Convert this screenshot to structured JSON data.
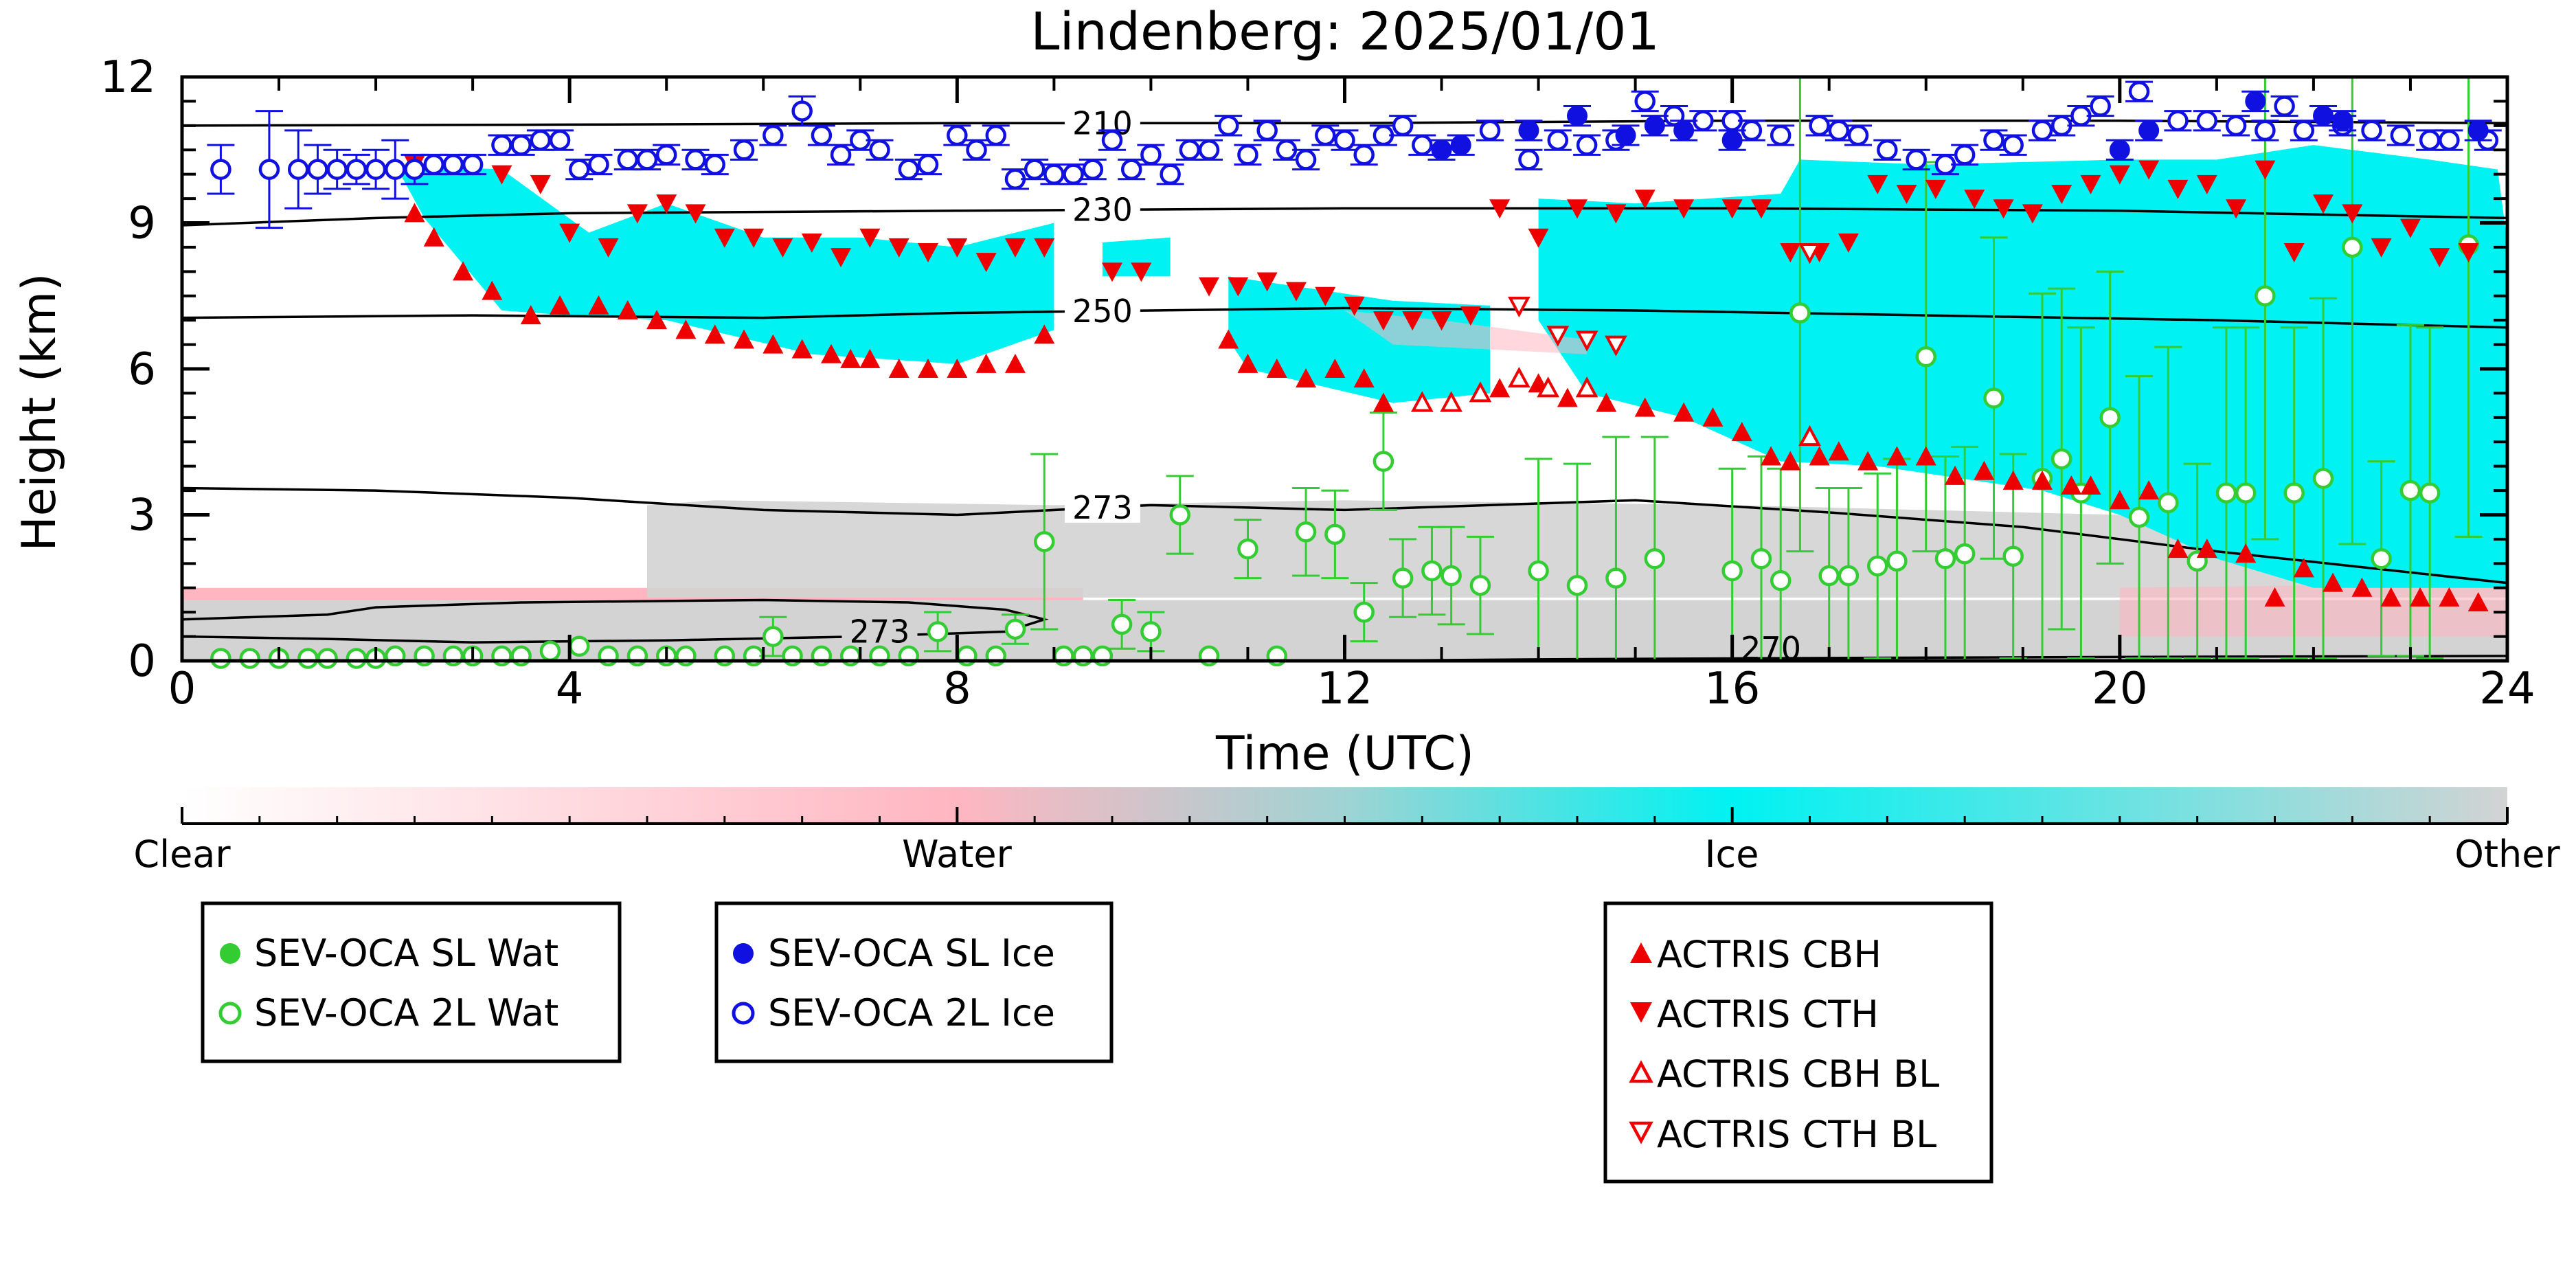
{
  "chart_data": {
    "type": "scatter",
    "title": "Lindenberg: 2025/01/01",
    "xlabel": "Time (UTC)",
    "ylabel": "Height (km)",
    "xlim": [
      0,
      24
    ],
    "ylim": [
      0,
      12
    ],
    "x_ticks": [
      0,
      4,
      8,
      12,
      16,
      20,
      24
    ],
    "y_ticks": [
      0,
      3,
      6,
      9,
      12
    ],
    "grid": false,
    "colors": {
      "clear": "#ffffff",
      "water": "#ffb6c1",
      "ice": "#00f2f2",
      "other": "#d3d3d3",
      "sl_wat": "#33cc33",
      "sl_ice": "#1010e0",
      "actris": "#ee0000",
      "contour": "#000000"
    },
    "colorbar": {
      "labels": [
        "Clear",
        "Water",
        "Ice",
        "Other"
      ]
    },
    "legends": [
      {
        "items": [
          {
            "label": "SEV-OCA SL Wat",
            "marker": "filled-circle",
            "color": "#33cc33"
          },
          {
            "label": "SEV-OCA 2L Wat",
            "marker": "open-circle",
            "color": "#33cc33"
          }
        ]
      },
      {
        "items": [
          {
            "label": "SEV-OCA SL Ice",
            "marker": "filled-circle",
            "color": "#1010e0"
          },
          {
            "label": "SEV-OCA 2L Ice",
            "marker": "open-circle",
            "color": "#1010e0"
          }
        ]
      },
      {
        "items": [
          {
            "label": "ACTRIS CBH",
            "marker": "filled-tri-up",
            "color": "#ee0000"
          },
          {
            "label": "ACTRIS CTH",
            "marker": "filled-tri-down",
            "color": "#ee0000"
          },
          {
            "label": "ACTRIS CBH BL",
            "marker": "open-tri-up",
            "color": "#ee0000"
          },
          {
            "label": "ACTRIS CTH BL",
            "marker": "open-tri-down",
            "color": "#ee0000"
          }
        ]
      }
    ],
    "contours": [
      {
        "label": "210",
        "label_x": 9.5,
        "x": [
          0,
          4,
          8,
          12,
          16,
          20,
          24
        ],
        "y": [
          11.0,
          11.02,
          11.05,
          11.05,
          11.1,
          11.1,
          11.05
        ]
      },
      {
        "label": "230",
        "label_x": 9.5,
        "x": [
          0,
          2,
          4,
          8,
          12,
          16,
          20,
          24
        ],
        "y": [
          8.95,
          9.1,
          9.2,
          9.25,
          9.3,
          9.3,
          9.25,
          9.1
        ]
      },
      {
        "label": "250",
        "label_x": 9.5,
        "x": [
          0,
          3,
          6,
          8,
          10,
          12,
          15,
          18,
          21,
          24
        ],
        "y": [
          7.05,
          7.1,
          7.05,
          7.15,
          7.2,
          7.25,
          7.2,
          7.1,
          7.0,
          6.85
        ]
      },
      {
        "label": "273",
        "label_x": 9.5,
        "x": [
          0,
          2,
          4,
          6,
          8,
          10,
          12,
          15,
          17,
          19,
          21,
          24
        ],
        "y": [
          3.55,
          3.5,
          3.35,
          3.1,
          3.0,
          3.2,
          3.1,
          3.3,
          3.05,
          2.75,
          2.25,
          1.6
        ]
      }
    ],
    "contour_loop_273": {
      "label": "273",
      "x": [
        0,
        1.5,
        2.0,
        3.5,
        6,
        7.5,
        8.5,
        8.9,
        8.5,
        7,
        5,
        3,
        1.5,
        0
      ],
      "y": [
        0.85,
        0.95,
        1.1,
        1.2,
        1.25,
        1.2,
        1.05,
        0.85,
        0.6,
        0.5,
        0.42,
        0.38,
        0.45,
        0.5
      ],
      "label_pos": [
        7.2,
        0.6
      ]
    },
    "contour_270": {
      "label": "270",
      "x": [
        12,
        14,
        16,
        20,
        24
      ],
      "y": [
        0.0,
        0.03,
        0.05,
        0.08,
        0.1
      ]
    },
    "series": [
      {
        "name": "SEV-OCA 2L Ice",
        "marker": "open-circle",
        "color": "#1010e0",
        "x": [
          0.4,
          0.9,
          1.2,
          1.4,
          1.6,
          1.8,
          2.0,
          2.2,
          2.4,
          2.6,
          2.8,
          3.0,
          3.3,
          3.5,
          3.7,
          3.9,
          4.1,
          4.3,
          4.6,
          4.8,
          5.0,
          5.3,
          5.5,
          5.8,
          6.1,
          6.4,
          6.6,
          6.8,
          7.0,
          7.2,
          7.5,
          7.7,
          8.0,
          8.2,
          8.4,
          8.6,
          8.8,
          9.0,
          9.2,
          9.4,
          9.6,
          9.8,
          10.0,
          10.2,
          10.4,
          10.6,
          10.8,
          11.0,
          11.2,
          11.4,
          11.6,
          11.8,
          12.0,
          12.2,
          12.4,
          12.6,
          12.8,
          13.5,
          13.9,
          14.2,
          14.5,
          14.8,
          15.1,
          15.4,
          15.7,
          16.0,
          16.2,
          16.5,
          16.9,
          17.1,
          17.3,
          17.6,
          17.9,
          18.2,
          18.4,
          18.7,
          18.9,
          19.2,
          19.4,
          19.6,
          19.8,
          20.2,
          20.6,
          20.9,
          21.2,
          21.5,
          21.7,
          21.9,
          22.3,
          22.6,
          22.9,
          23.2,
          23.4,
          23.8
        ],
        "y": [
          10.1,
          10.1,
          10.1,
          10.1,
          10.1,
          10.1,
          10.1,
          10.1,
          10.1,
          10.2,
          10.2,
          10.2,
          10.6,
          10.6,
          10.7,
          10.7,
          10.1,
          10.2,
          10.3,
          10.3,
          10.4,
          10.3,
          10.2,
          10.5,
          10.8,
          11.3,
          10.8,
          10.4,
          10.7,
          10.5,
          10.1,
          10.2,
          10.8,
          10.5,
          10.8,
          9.9,
          10.1,
          10.0,
          10.0,
          10.1,
          10.7,
          10.1,
          10.4,
          10.0,
          10.5,
          10.5,
          11.0,
          10.4,
          10.9,
          10.5,
          10.3,
          10.8,
          10.7,
          10.4,
          10.8,
          11.0,
          10.6,
          10.9,
          10.3,
          10.7,
          10.6,
          10.7,
          11.5,
          11.2,
          11.1,
          11.1,
          10.9,
          10.8,
          11.0,
          10.9,
          10.8,
          10.5,
          10.3,
          10.2,
          10.4,
          10.7,
          10.6,
          10.9,
          11.0,
          11.2,
          11.4,
          11.7,
          11.1,
          11.1,
          11.0,
          10.9,
          11.4,
          10.9,
          11.0,
          10.9,
          10.8,
          10.7,
          10.7,
          10.7
        ],
        "err": [
          0.5,
          1.2,
          0.8,
          0.5,
          0.4,
          0.3,
          0.4,
          0.6,
          0.3,
          0.2,
          0.2,
          0.2,
          0.2,
          0.2,
          0.2,
          0.2,
          0.2,
          0.2,
          0.2,
          0.2,
          0.2,
          0.2,
          0.2,
          0.2,
          0.2,
          0.3,
          0.2,
          0.2,
          0.2,
          0.2,
          0.2,
          0.2,
          0.2,
          0.2,
          0.2,
          0.2,
          0.2,
          0.2,
          0.2,
          0.2,
          0.2,
          0.2,
          0.2,
          0.2,
          0.2,
          0.2,
          0.2,
          0.2,
          0.2,
          0.2,
          0.2,
          0.2,
          0.2,
          0.2,
          0.2,
          0.2,
          0.2,
          0.2,
          0.2,
          0.2,
          0.2,
          0.2,
          0.2,
          0.2,
          0.2,
          0.2,
          0.2,
          0.2,
          0.2,
          0.2,
          0.2,
          0.2,
          0.2,
          0.2,
          0.2,
          0.2,
          0.2,
          0.2,
          0.2,
          0.2,
          0.2,
          0.2,
          0.2,
          0.2,
          0.2,
          0.2,
          0.2,
          0.2,
          0.2,
          0.2,
          0.2,
          0.2,
          0.2,
          0.2
        ]
      },
      {
        "name": "SEV-OCA SL Ice",
        "marker": "filled-circle",
        "color": "#1010e0",
        "x": [
          13.0,
          13.2,
          13.9,
          14.4,
          14.9,
          15.2,
          15.5,
          16.0,
          20.0,
          20.3,
          21.4,
          22.1,
          22.3,
          23.7
        ],
        "y": [
          10.5,
          10.6,
          10.9,
          11.2,
          10.8,
          11.0,
          10.9,
          10.7,
          10.5,
          10.9,
          11.5,
          11.2,
          11.1,
          10.9
        ],
        "err": [
          0.2,
          0.2,
          0.2,
          0.2,
          0.2,
          0.2,
          0.2,
          0.2,
          0.2,
          0.2,
          0.2,
          0.2,
          0.2,
          0.2
        ]
      },
      {
        "name": "SEV-OCA 2L Wat",
        "marker": "open-circle",
        "color": "#33cc33",
        "x": [
          0.4,
          0.7,
          1.0,
          1.3,
          1.5,
          1.8,
          2.0,
          2.2,
          2.5,
          2.8,
          3.0,
          3.3,
          3.5,
          3.8,
          4.1,
          4.4,
          4.7,
          5.0,
          5.2,
          5.6,
          5.9,
          6.1,
          6.3,
          6.6,
          6.9,
          7.2,
          7.5,
          7.8,
          8.1,
          8.4,
          8.6,
          8.9,
          9.1,
          9.3,
          9.5,
          9.7,
          10.0,
          10.3,
          10.6,
          11.0,
          11.3,
          11.6,
          11.9,
          12.2,
          12.4,
          12.6,
          12.9,
          13.1,
          13.4,
          14.0,
          14.4,
          14.8,
          15.2,
          16.0,
          16.3,
          16.5,
          16.7,
          17.0,
          17.2,
          17.5,
          17.7,
          18.0,
          18.2,
          18.4,
          18.7,
          18.9,
          19.2,
          19.4,
          19.6,
          19.9,
          20.2,
          20.5,
          20.8,
          21.1,
          21.3,
          21.5,
          21.8,
          22.1,
          22.4,
          22.7,
          23.0,
          23.2,
          23.6
        ],
        "y": [
          0.05,
          0.05,
          0.05,
          0.05,
          0.05,
          0.05,
          0.05,
          0.1,
          0.1,
          0.1,
          0.1,
          0.1,
          0.1,
          0.2,
          0.3,
          0.1,
          0.1,
          0.1,
          0.1,
          0.1,
          0.1,
          0.5,
          0.1,
          0.1,
          0.1,
          0.1,
          0.1,
          0.6,
          0.1,
          0.1,
          0.65,
          2.45,
          0.1,
          0.1,
          0.1,
          0.75,
          0.6,
          3.0,
          0.1,
          2.3,
          0.1,
          2.65,
          2.6,
          1.0,
          4.1,
          1.7,
          1.85,
          1.75,
          1.55,
          1.85,
          1.55,
          1.7,
          2.1,
          1.85,
          2.1,
          1.65,
          7.15,
          1.75,
          1.75,
          1.95,
          2.05,
          6.25,
          2.1,
          2.2,
          5.4,
          2.15,
          3.75,
          4.15,
          3.45,
          5.0,
          2.95,
          3.25,
          2.05,
          3.45,
          3.45,
          7.5,
          3.45,
          3.75,
          8.5,
          2.1,
          3.5,
          3.45,
          8.55
        ],
        "err": [
          0,
          0,
          0,
          0,
          0,
          0,
          0,
          0,
          0,
          0,
          0,
          0,
          0,
          0,
          0,
          0,
          0,
          0,
          0,
          0,
          0,
          0.4,
          0,
          0,
          0,
          0,
          0,
          0.4,
          0,
          0,
          0.3,
          1.8,
          0,
          0,
          0,
          0.5,
          0.4,
          0.8,
          0,
          0.6,
          0,
          0.9,
          0.9,
          0.6,
          1.0,
          0.8,
          0.9,
          1.0,
          1.0,
          2.3,
          2.5,
          2.9,
          2.5,
          2.1,
          2.1,
          2.3,
          4.9,
          1.8,
          1.8,
          1.9,
          2.1,
          4.0,
          2.1,
          2.2,
          3.3,
          2.1,
          3.8,
          3.5,
          3.4,
          3.0,
          2.9,
          3.2,
          2.0,
          3.4,
          3.4,
          5.0,
          3.4,
          3.7,
          6.1,
          2.0,
          3.4,
          3.4,
          6.0
        ]
      },
      {
        "name": "ACTRIS CBH",
        "marker": "filled-tri-up",
        "color": "#ee0000",
        "x": [
          2.4,
          2.6,
          2.9,
          3.2,
          3.6,
          3.9,
          4.3,
          4.6,
          4.9,
          5.2,
          5.5,
          5.8,
          6.1,
          6.4,
          6.7,
          6.9,
          7.1,
          7.4,
          7.7,
          8.0,
          8.3,
          8.6,
          8.9,
          10.8,
          11.0,
          11.3,
          11.6,
          11.9,
          12.2,
          12.4,
          13.6,
          14.0,
          14.3,
          14.7,
          15.1,
          15.5,
          15.8,
          16.1,
          16.4,
          16.6,
          16.9,
          17.1,
          17.4,
          17.7,
          18.0,
          18.3,
          18.6,
          18.9,
          19.2,
          19.5,
          19.7,
          20.0,
          20.3,
          20.6,
          20.9,
          21.3,
          21.6,
          21.9,
          22.2,
          22.5,
          22.8,
          23.1,
          23.4,
          23.7
        ],
        "y": [
          9.2,
          8.7,
          8.0,
          7.6,
          7.1,
          7.3,
          7.3,
          7.2,
          7.0,
          6.8,
          6.7,
          6.6,
          6.5,
          6.4,
          6.3,
          6.2,
          6.2,
          6.0,
          6.0,
          6.0,
          6.1,
          6.1,
          6.7,
          6.6,
          6.1,
          6.0,
          5.8,
          6.0,
          5.8,
          5.3,
          5.6,
          5.7,
          5.4,
          5.3,
          5.2,
          5.1,
          5.0,
          4.7,
          4.2,
          4.1,
          4.2,
          4.3,
          4.1,
          4.2,
          4.2,
          3.8,
          3.9,
          3.7,
          3.7,
          3.6,
          3.6,
          3.3,
          3.5,
          2.3,
          2.3,
          2.2,
          1.3,
          1.9,
          1.6,
          1.5,
          1.3,
          1.3,
          1.3,
          1.2
        ]
      },
      {
        "name": "ACTRIS CTH",
        "marker": "filled-tri-down",
        "color": "#ee0000",
        "x": [
          2.4,
          3.3,
          3.7,
          4.0,
          4.4,
          4.7,
          5.0,
          5.3,
          5.6,
          5.9,
          6.2,
          6.5,
          6.8,
          7.1,
          7.4,
          7.7,
          8.0,
          8.3,
          8.6,
          8.9,
          9.6,
          9.9,
          10.6,
          10.9,
          11.2,
          11.5,
          11.8,
          12.1,
          12.4,
          12.7,
          13.0,
          13.3,
          13.6,
          14.0,
          14.4,
          14.8,
          15.1,
          15.5,
          16.0,
          16.3,
          16.6,
          16.9,
          17.2,
          17.5,
          17.8,
          18.1,
          18.5,
          18.8,
          19.1,
          19.4,
          19.7,
          20.0,
          20.3,
          20.6,
          20.9,
          21.2,
          21.5,
          21.8,
          22.1,
          22.4,
          22.7,
          23.0,
          23.3,
          23.6
        ],
        "y": [
          10.2,
          10.0,
          9.8,
          8.8,
          8.5,
          9.2,
          9.4,
          9.2,
          8.7,
          8.7,
          8.5,
          8.6,
          8.3,
          8.7,
          8.5,
          8.4,
          8.5,
          8.2,
          8.5,
          8.5,
          8.0,
          8.0,
          7.7,
          7.7,
          7.8,
          7.6,
          7.5,
          7.3,
          7.0,
          7.0,
          7.0,
          7.1,
          9.3,
          8.7,
          9.3,
          9.2,
          9.5,
          9.3,
          9.3,
          9.3,
          8.4,
          8.4,
          8.6,
          9.8,
          9.6,
          9.7,
          9.5,
          9.3,
          9.2,
          9.6,
          9.8,
          10.0,
          10.1,
          9.7,
          9.8,
          9.3,
          10.1,
          8.4,
          9.4,
          9.2,
          8.5,
          8.9,
          8.3,
          8.4
        ]
      },
      {
        "name": "ACTRIS CBH BL",
        "marker": "open-tri-up",
        "color": "#ee0000",
        "x": [
          12.8,
          13.1,
          13.4,
          13.8,
          14.1,
          14.5,
          16.8
        ],
        "y": [
          5.3,
          5.3,
          5.5,
          5.8,
          5.6,
          5.6,
          4.6
        ]
      },
      {
        "name": "ACTRIS CTH BL",
        "marker": "open-tri-down",
        "color": "#ee0000",
        "x": [
          13.8,
          14.2,
          14.5,
          14.8,
          16.8
        ],
        "y": [
          7.3,
          6.7,
          6.6,
          6.5,
          8.4
        ]
      }
    ]
  }
}
